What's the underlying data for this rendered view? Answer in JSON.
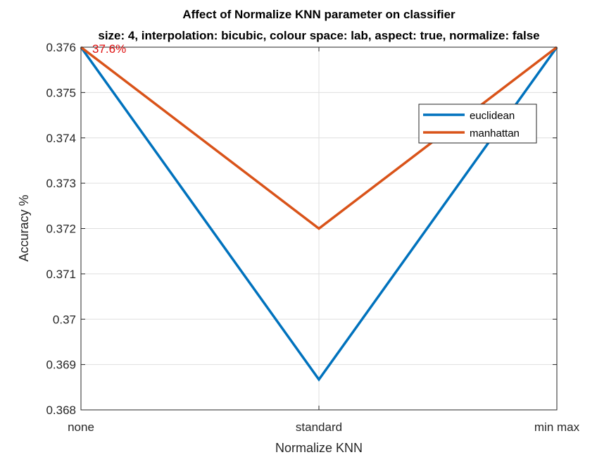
{
  "chart_data": {
    "type": "line",
    "title": "Affect of Normalize KNN parameter on classifier",
    "subtitle": "size: 4, interpolation: bicubic, colour space: lab, aspect: true, normalize: false",
    "xlabel": "Normalize KNN",
    "ylabel": "Accuracy %",
    "categories": [
      "none",
      "standard",
      "min max"
    ],
    "ylim": [
      0.368,
      0.376
    ],
    "yticks": [
      0.368,
      0.369,
      0.37,
      0.371,
      0.372,
      0.373,
      0.374,
      0.375,
      0.376
    ],
    "ytick_labels": [
      "0.368",
      "0.369",
      "0.37",
      "0.371",
      "0.372",
      "0.373",
      "0.374",
      "0.375",
      "0.376"
    ],
    "grid": true,
    "legend_position": "top-right",
    "series": [
      {
        "name": "euclidean",
        "color": "#0072BD",
        "values": [
          0.376,
          0.36867,
          0.376
        ]
      },
      {
        "name": "manhattan",
        "color": "#D95319",
        "values": [
          0.376,
          0.372,
          0.376
        ]
      }
    ],
    "annotations": [
      {
        "text": "37.6%",
        "x": "none",
        "y": 0.376,
        "color": "#e01010"
      }
    ]
  }
}
